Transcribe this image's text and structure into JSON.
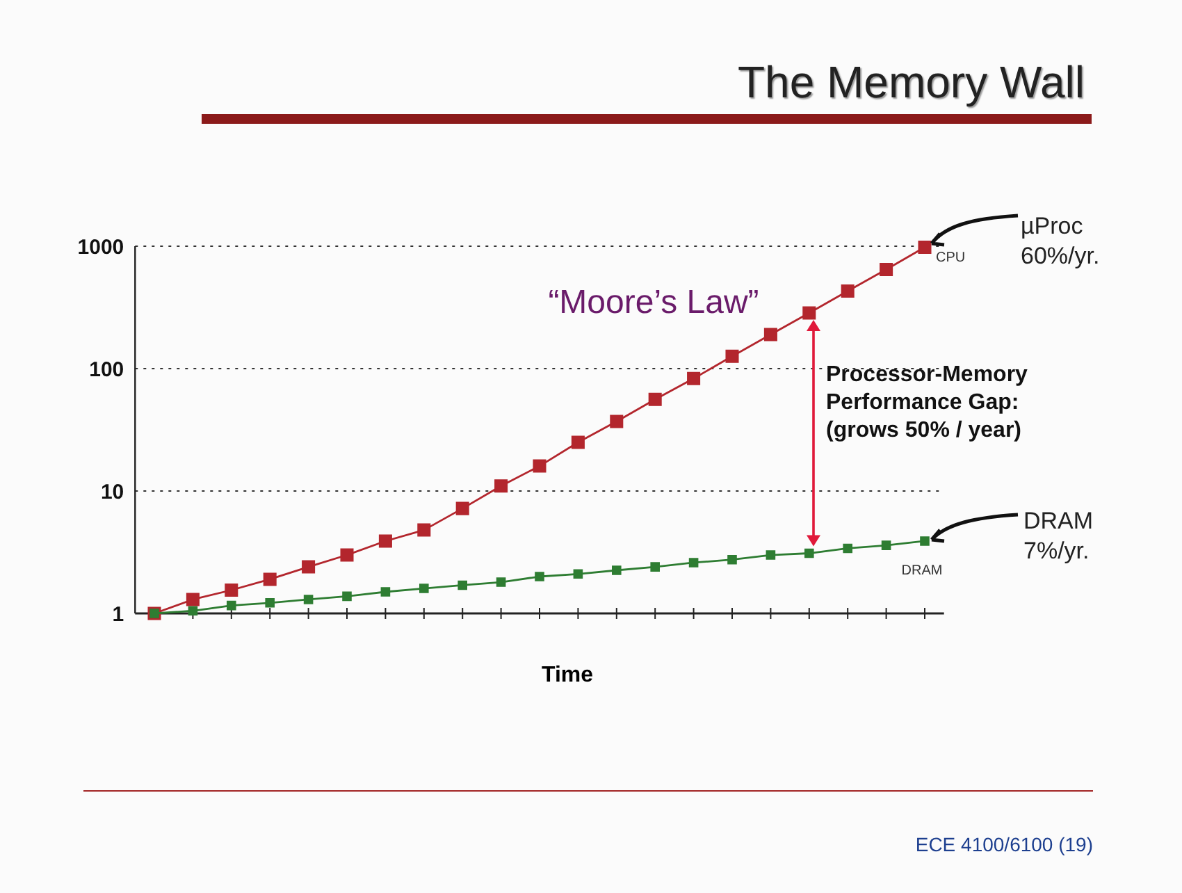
{
  "chart_data": {
    "type": "line",
    "title": "The Memory Wall",
    "xlabel": "Time",
    "categories": [
      null,
      null,
      null,
      null,
      null,
      null,
      null,
      null,
      null,
      null,
      null,
      null,
      null,
      null,
      null,
      null,
      null,
      null,
      null,
      null,
      null
    ],
    "series": [
      {
        "name": "CPU",
        "color": "#b3262d",
        "values": [
          1,
          1.3,
          1.55,
          1.9,
          2.4,
          3.0,
          3.9,
          4.8,
          7.2,
          11,
          16,
          25,
          37,
          56,
          83,
          126,
          190,
          285,
          430,
          645,
          980
        ]
      },
      {
        "name": "DRAM",
        "color": "#2e7d32",
        "values": [
          1,
          1.05,
          1.16,
          1.22,
          1.3,
          1.38,
          1.5,
          1.6,
          1.7,
          1.8,
          2.0,
          2.1,
          2.25,
          2.4,
          2.6,
          2.75,
          3.0,
          3.1,
          3.4,
          3.6,
          3.9
        ]
      }
    ],
    "log": "y",
    "ylim": [
      1,
      1000
    ],
    "yticks": [
      1,
      10,
      100,
      1000
    ],
    "grid": "y",
    "marker": "square",
    "line_style": "solid",
    "annotations": [
      "“Moore’s Law”",
      "Processor-Memory\nPerformance Gap:\n(grows 50% / year)",
      "µProc\n60%/yr.",
      "DRAM\n7%/yr.",
      "ECE 4100/6100  (19)"
    ]
  }
}
